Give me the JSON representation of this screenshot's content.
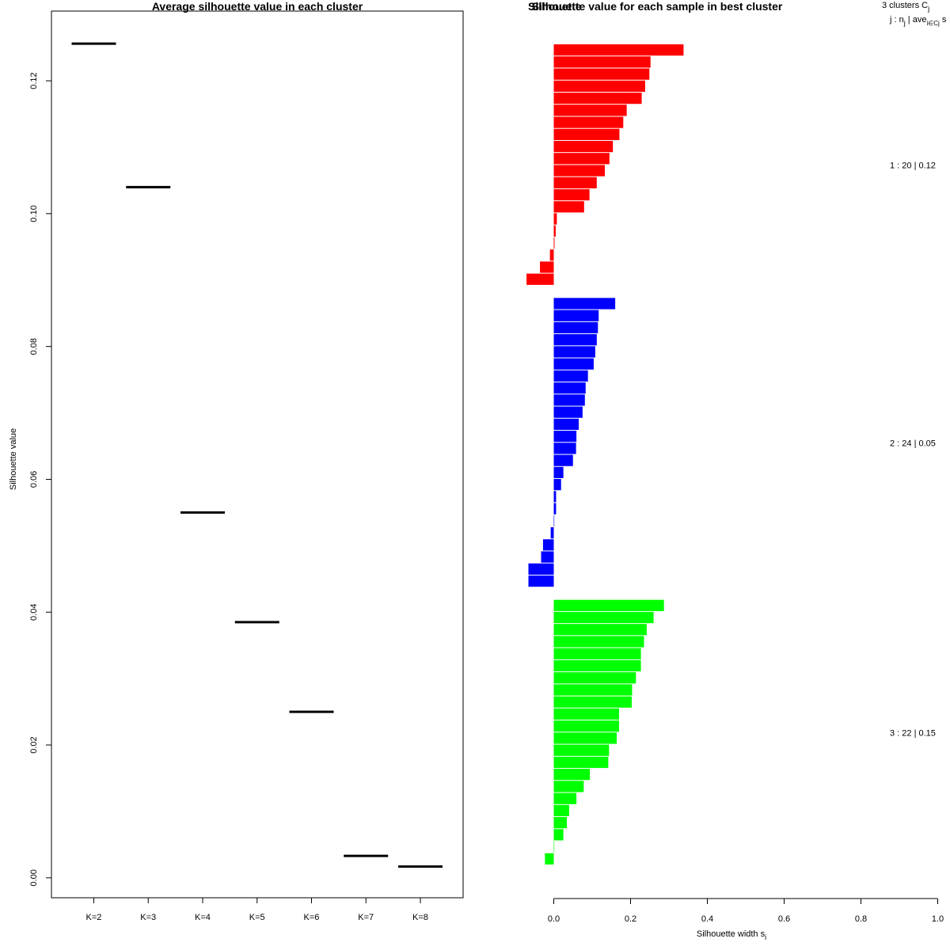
{
  "chart_data": [
    {
      "type": "line",
      "title": "Average silhouette value in each cluster",
      "xlabel": "",
      "ylabel": "Silhouette value",
      "categories": [
        "K=2",
        "K=3",
        "K=4",
        "K=5",
        "K=6",
        "K=7",
        "K=8"
      ],
      "values": [
        0.1256,
        0.104,
        0.055,
        0.0385,
        0.025,
        0.0033,
        0.0017
      ],
      "yticks": [
        "0.00",
        "0.02",
        "0.04",
        "0.06",
        "0.08",
        "0.10",
        "0.12"
      ],
      "ytick_values": [
        0,
        0.02,
        0.04,
        0.06,
        0.08,
        0.1,
        0.12
      ],
      "ylim": [
        -0.003,
        0.1305
      ],
      "grid": false
    },
    {
      "type": "bar",
      "title": "Silhouette value for each sample in best cluster",
      "title_overlay": "Silhouette",
      "xlabel": "Silhouette width s",
      "xlabel_sub": "i",
      "xlim": [
        0,
        1
      ],
      "xticks": [
        "0.0",
        "0.2",
        "0.4",
        "0.6",
        "0.8",
        "1.0"
      ],
      "xtick_values": [
        0,
        0.2,
        0.4,
        0.6,
        0.8,
        1.0
      ],
      "header": {
        "line1": "3  clusters  C",
        "line1_sub": "j",
        "line2": "j :  n",
        "line2_sub": "j",
        "line2_rest": " | ave",
        "line2_rest_sub": "i∈Cj",
        "line2_tail": "  s"
      },
      "clusters": [
        {
          "label": "1 :  20  |  0.12",
          "color": "#ff0000",
          "values": [
            0.338,
            0.252,
            0.249,
            0.238,
            0.229,
            0.19,
            0.181,
            0.171,
            0.154,
            0.145,
            0.133,
            0.112,
            0.093,
            0.079,
            0.008,
            0.005,
            0.002,
            -0.01,
            -0.036,
            -0.071
          ]
        },
        {
          "label": "2 :  24  |  0.05",
          "color": "#0000ff",
          "values": [
            0.16,
            0.117,
            0.115,
            0.112,
            0.108,
            0.104,
            0.089,
            0.083,
            0.081,
            0.075,
            0.065,
            0.059,
            0.058,
            0.05,
            0.025,
            0.019,
            0.006,
            0.006,
            0.0,
            -0.008,
            -0.028,
            -0.033,
            -0.066,
            -0.066
          ]
        },
        {
          "label": "3 :  22  |  0.15",
          "color": "#00ff00",
          "values": [
            0.287,
            0.26,
            0.242,
            0.235,
            0.227,
            0.227,
            0.214,
            0.204,
            0.203,
            0.17,
            0.17,
            0.164,
            0.144,
            0.142,
            0.094,
            0.078,
            0.059,
            0.04,
            0.034,
            0.025,
            0.001,
            -0.023
          ]
        }
      ]
    }
  ]
}
